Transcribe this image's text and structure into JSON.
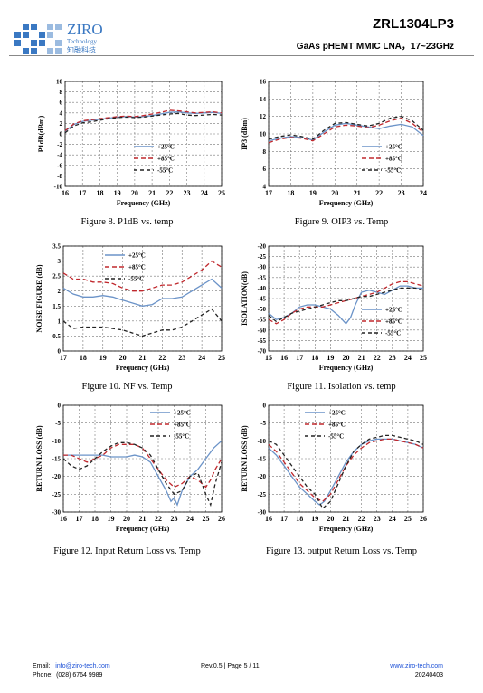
{
  "header": {
    "logo_text": "ZIRO",
    "logo_sub": "Technology",
    "logo_cn": "知融科技",
    "part_number": "ZRL1304LP3",
    "subtitle": "GaAs pHEMT MMIC LNA，17~23GHz",
    "brand_color": "#3a78c2"
  },
  "legend_labels": [
    "+25°C",
    "+85°C",
    "-55°C"
  ],
  "series_colors": [
    "#6b93c8",
    "#c0282d",
    "#222222"
  ],
  "captions": {
    "fig8": "Figure 8. P1dB vs. temp",
    "fig9": "Figure 9. OIP3 vs. Temp",
    "fig10": "Figure 10. NF vs. Temp",
    "fig11": "Figure 11. Isolation vs. temp",
    "fig12": "Figure 12. Input Return Loss vs. Temp",
    "fig13": "Figure 13. output Return Loss vs. Temp"
  },
  "chart_data": [
    {
      "id": "fig8",
      "type": "line",
      "xlabel": "Frequency (GHz)",
      "ylabel": "P1dB(dBm)",
      "xlim": [
        16,
        25
      ],
      "ylim": [
        -10,
        10
      ],
      "xticks": [
        16,
        17,
        18,
        19,
        20,
        21,
        22,
        23,
        24,
        25
      ],
      "yticks": [
        -10,
        -8,
        -6,
        -4,
        -2,
        0,
        2,
        4,
        6,
        8,
        10
      ],
      "legend_pos": "lower-right",
      "grid": true,
      "series": [
        {
          "name": "+25°C",
          "x": [
            16,
            16.5,
            17,
            17.5,
            18,
            18.5,
            19,
            19.5,
            20,
            20.5,
            21,
            21.5,
            22,
            22.5,
            23,
            23.5,
            24,
            24.5,
            25
          ],
          "y": [
            0.5,
            1.8,
            2.4,
            2.6,
            2.8,
            3.0,
            3.2,
            3.3,
            3.2,
            3.3,
            3.5,
            3.8,
            4.1,
            4.2,
            4.0,
            3.9,
            4.0,
            4.1,
            3.9
          ]
        },
        {
          "name": "+85°C",
          "x": [
            16,
            16.5,
            17,
            17.5,
            18,
            18.5,
            19,
            19.5,
            20,
            20.5,
            21,
            21.5,
            22,
            22.5,
            23,
            23.5,
            24,
            24.5,
            25
          ],
          "y": [
            0.6,
            1.9,
            2.5,
            2.7,
            2.9,
            3.1,
            3.3,
            3.4,
            3.3,
            3.5,
            3.8,
            4.1,
            4.5,
            4.4,
            4.2,
            4.0,
            4.1,
            4.2,
            4.0
          ]
        },
        {
          "name": "-55°C",
          "x": [
            16,
            16.5,
            17,
            17.5,
            18,
            18.5,
            19,
            19.5,
            20,
            20.5,
            21,
            21.5,
            22,
            22.5,
            23,
            23.5,
            24,
            24.5,
            25
          ],
          "y": [
            0.2,
            1.5,
            2.1,
            2.3,
            2.6,
            2.9,
            3.1,
            3.2,
            3.1,
            3.2,
            3.4,
            3.6,
            3.8,
            3.9,
            3.6,
            3.5,
            3.6,
            3.7,
            3.6
          ]
        }
      ]
    },
    {
      "id": "fig9",
      "type": "line",
      "xlabel": "Frequency (GHz)",
      "ylabel": "IP3 (dBm)",
      "xlim": [
        17,
        24
      ],
      "ylim": [
        4,
        16
      ],
      "xticks": [
        17,
        18,
        19,
        20,
        21,
        22,
        23,
        24
      ],
      "yticks": [
        4,
        6,
        8,
        10,
        12,
        14,
        16
      ],
      "legend_pos": "lower-right",
      "grid": true,
      "series": [
        {
          "name": "+25°C",
          "x": [
            17,
            17.5,
            18,
            18.5,
            19,
            19.5,
            20,
            20.5,
            21,
            21.5,
            22,
            22.5,
            23,
            23.5,
            24
          ],
          "y": [
            9.2,
            9.5,
            9.7,
            9.6,
            9.3,
            10.2,
            11.0,
            11.2,
            11.0,
            10.8,
            10.6,
            10.9,
            11.1,
            10.8,
            9.8
          ]
        },
        {
          "name": "+85°C",
          "x": [
            17,
            17.5,
            18,
            18.5,
            19,
            19.5,
            20,
            20.5,
            21,
            21.5,
            22,
            22.5,
            23,
            23.5,
            24
          ],
          "y": [
            9.0,
            9.4,
            9.6,
            9.5,
            9.2,
            10.0,
            10.8,
            11.0,
            10.9,
            10.7,
            11.0,
            11.5,
            11.8,
            11.2,
            10.2
          ]
        },
        {
          "name": "-55°C",
          "x": [
            17,
            17.5,
            18,
            18.5,
            19,
            19.5,
            20,
            20.5,
            21,
            21.5,
            22,
            22.5,
            23,
            23.5,
            24
          ],
          "y": [
            9.4,
            9.7,
            9.9,
            9.7,
            9.4,
            10.4,
            11.2,
            11.3,
            11.1,
            10.9,
            11.2,
            11.8,
            12.0,
            11.5,
            10.4
          ]
        }
      ]
    },
    {
      "id": "fig10",
      "type": "line",
      "xlabel": "Frequency (GHz)",
      "ylabel": "NOISE FIGURE (dB)",
      "xlim": [
        17,
        25
      ],
      "ylim": [
        0,
        3.5
      ],
      "xticks": [
        17,
        18,
        19,
        20,
        21,
        22,
        23,
        24,
        25
      ],
      "yticks": [
        0,
        0.5,
        1,
        1.5,
        2,
        2.5,
        3,
        3.5
      ],
      "legend_pos": "top-center",
      "grid": true,
      "series": [
        {
          "name": "+25°C",
          "x": [
            17,
            17.5,
            18,
            18.5,
            19,
            19.5,
            20,
            20.5,
            21,
            21.5,
            22,
            22.5,
            23,
            23.5,
            24,
            24.5,
            25
          ],
          "y": [
            2.1,
            1.9,
            1.8,
            1.8,
            1.85,
            1.8,
            1.7,
            1.6,
            1.5,
            1.55,
            1.75,
            1.75,
            1.8,
            2.0,
            2.2,
            2.4,
            2.1
          ]
        },
        {
          "name": "+85°C",
          "x": [
            17,
            17.5,
            18,
            18.5,
            19,
            19.5,
            20,
            20.5,
            21,
            21.5,
            22,
            22.5,
            23,
            23.5,
            24,
            24.5,
            25
          ],
          "y": [
            2.6,
            2.4,
            2.4,
            2.3,
            2.3,
            2.25,
            2.1,
            2.0,
            2.0,
            2.1,
            2.2,
            2.2,
            2.3,
            2.5,
            2.7,
            3.0,
            2.8
          ]
        },
        {
          "name": "-55°C",
          "x": [
            17,
            17.5,
            18,
            18.5,
            19,
            19.5,
            20,
            20.5,
            21,
            21.5,
            22,
            22.5,
            23,
            23.5,
            24,
            24.5,
            25
          ],
          "y": [
            1.0,
            0.75,
            0.8,
            0.8,
            0.8,
            0.75,
            0.7,
            0.6,
            0.5,
            0.6,
            0.7,
            0.7,
            0.8,
            1.0,
            1.2,
            1.4,
            1.0
          ]
        }
      ]
    },
    {
      "id": "fig11",
      "type": "line",
      "xlabel": "Frequency (GHz)",
      "ylabel": "ISOLATION(dB)",
      "xlim": [
        15,
        25
      ],
      "ylim": [
        -70,
        -20
      ],
      "xticks": [
        15,
        16,
        17,
        18,
        19,
        20,
        21,
        22,
        23,
        24,
        25
      ],
      "yticks": [
        -70,
        -65,
        -60,
        -55,
        -50,
        -45,
        -40,
        -35,
        -30,
        -25,
        -20
      ],
      "legend_pos": "lower-right",
      "grid": true,
      "series": [
        {
          "name": "+25°C",
          "x": [
            15,
            15.5,
            16,
            16.5,
            17,
            17.5,
            18,
            18.5,
            19,
            19.5,
            20,
            20.3,
            20.6,
            21,
            21.5,
            22,
            22.5,
            23,
            23.5,
            24,
            24.5,
            25
          ],
          "y": [
            -52,
            -55,
            -54,
            -52,
            -49,
            -48,
            -48,
            -49,
            -50,
            -53,
            -57,
            -54,
            -48,
            -42,
            -41,
            -42,
            -43,
            -41,
            -39,
            -39,
            -40,
            -40
          ]
        },
        {
          "name": "+85°C",
          "x": [
            15,
            15.5,
            16,
            16.5,
            17,
            17.5,
            18,
            18.5,
            19,
            19.5,
            20,
            20.5,
            21,
            21.5,
            22,
            22.5,
            23,
            23.5,
            24,
            24.5,
            25
          ],
          "y": [
            -55,
            -57,
            -55,
            -52,
            -50,
            -49,
            -49,
            -49,
            -48,
            -47,
            -46,
            -45,
            -44,
            -43,
            -42,
            -40,
            -38,
            -37,
            -37,
            -38,
            -39
          ]
        },
        {
          "name": "-55°C",
          "x": [
            15,
            15.5,
            16,
            16.5,
            17,
            17.5,
            18,
            18.5,
            19,
            19.5,
            20,
            20.5,
            21,
            21.5,
            22,
            22.5,
            23,
            23.5,
            24,
            24.5,
            25
          ],
          "y": [
            -53,
            -56,
            -54,
            -52,
            -51,
            -50,
            -49,
            -48,
            -47,
            -46,
            -46,
            -45,
            -44,
            -44,
            -43,
            -42,
            -41,
            -40,
            -40,
            -40,
            -41
          ]
        }
      ]
    },
    {
      "id": "fig12",
      "type": "line",
      "xlabel": "Frequency (GHz)",
      "ylabel": "RETURN LOSS (dB)",
      "xlim": [
        16,
        26
      ],
      "ylim": [
        -30,
        0
      ],
      "xticks": [
        16,
        17,
        18,
        19,
        20,
        21,
        22,
        23,
        24,
        25,
        26
      ],
      "yticks": [
        -30,
        -25,
        -20,
        -15,
        -10,
        -5,
        0
      ],
      "legend_pos": "top-right",
      "grid": true,
      "series": [
        {
          "name": "+25°C",
          "x": [
            16,
            16.5,
            17,
            17.5,
            18,
            18.5,
            19,
            19.5,
            20,
            20.5,
            21,
            21.5,
            22,
            22.5,
            22.8,
            23,
            23.2,
            23.5,
            24,
            24.5,
            25,
            25.5,
            26
          ],
          "y": [
            -14,
            -14,
            -14,
            -14,
            -14,
            -14,
            -14.5,
            -14.5,
            -14.5,
            -14,
            -14.5,
            -16,
            -20,
            -24,
            -27,
            -26,
            -28,
            -24,
            -20,
            -18,
            -15,
            -12,
            -10
          ]
        },
        {
          "name": "+85°C",
          "x": [
            16,
            16.5,
            17,
            17.5,
            18,
            18.5,
            19,
            19.5,
            20,
            20.5,
            21,
            21.5,
            22,
            22.5,
            23,
            23.5,
            24,
            24.5,
            25,
            25.3,
            25.6,
            26
          ],
          "y": [
            -14,
            -14,
            -15,
            -16,
            -15,
            -14,
            -12,
            -11,
            -11,
            -11,
            -12,
            -15,
            -18,
            -21,
            -23,
            -22,
            -20,
            -21,
            -23,
            -21,
            -18,
            -15
          ]
        },
        {
          "name": "-55°C",
          "x": [
            16,
            16.5,
            17,
            17.5,
            18,
            18.5,
            19,
            19.5,
            20,
            20.5,
            21,
            21.5,
            22,
            22.5,
            23,
            23.5,
            24,
            24.5,
            25,
            25.3,
            25.6,
            26
          ],
          "y": [
            -15,
            -17,
            -18,
            -17,
            -15,
            -13,
            -11.5,
            -10.5,
            -10.5,
            -11,
            -12,
            -14,
            -18,
            -22,
            -25,
            -24,
            -20,
            -19,
            -25,
            -28,
            -22,
            -16
          ]
        }
      ]
    },
    {
      "id": "fig13",
      "type": "line",
      "xlabel": "Frequency (GHz)",
      "ylabel": "RETURN LOSS (dB)",
      "xlim": [
        16,
        26
      ],
      "ylim": [
        -30,
        0
      ],
      "xticks": [
        16,
        17,
        18,
        19,
        20,
        21,
        22,
        23,
        24,
        25,
        26
      ],
      "yticks": [
        -30,
        -25,
        -20,
        -15,
        -10,
        -5,
        0
      ],
      "legend_pos": "top-center",
      "grid": true,
      "series": [
        {
          "name": "+25°C",
          "x": [
            16,
            16.5,
            17,
            17.5,
            18,
            18.5,
            19,
            19.3,
            19.6,
            20,
            20.5,
            21,
            21.5,
            22,
            22.5,
            23,
            23.5,
            24,
            24.5,
            25,
            25.5,
            26
          ],
          "y": [
            -12,
            -14,
            -17,
            -20,
            -23,
            -25,
            -27,
            -28,
            -27,
            -24,
            -20,
            -16,
            -13,
            -11,
            -10,
            -9.5,
            -9.5,
            -9.5,
            -10,
            -10.5,
            -11,
            -12
          ]
        },
        {
          "name": "+85°C",
          "x": [
            16,
            16.5,
            17,
            17.5,
            18,
            18.5,
            19,
            19.5,
            20,
            20.5,
            21,
            21.5,
            22,
            22.5,
            23,
            23.5,
            24,
            24.5,
            25,
            25.5,
            26
          ],
          "y": [
            -11,
            -13,
            -16,
            -19,
            -22,
            -24,
            -26,
            -27,
            -25,
            -21,
            -17,
            -14,
            -12,
            -10.5,
            -10,
            -9.5,
            -9.5,
            -10,
            -10.5,
            -11,
            -12
          ]
        },
        {
          "name": "-55°C",
          "x": [
            16,
            16.5,
            17,
            17.5,
            18,
            18.5,
            19,
            19.5,
            20,
            20.5,
            21,
            21.5,
            22,
            22.5,
            23,
            23.5,
            24,
            24.5,
            25,
            25.5,
            26
          ],
          "y": [
            -10,
            -11,
            -14,
            -17,
            -20,
            -23,
            -25,
            -29,
            -27,
            -22,
            -17,
            -13,
            -11,
            -9.5,
            -9,
            -8.5,
            -8.5,
            -9,
            -9.5,
            -10,
            -11
          ]
        }
      ]
    }
  ],
  "footer": {
    "email_label": "Email:",
    "email": "info@ziro-tech.com",
    "phone_label": "Phone:",
    "phone": "(028) 6764 9989",
    "rev": "Rev.0.5 | Page 5 / 11",
    "website": "www.ziro-tech.com",
    "date": "20240403"
  }
}
